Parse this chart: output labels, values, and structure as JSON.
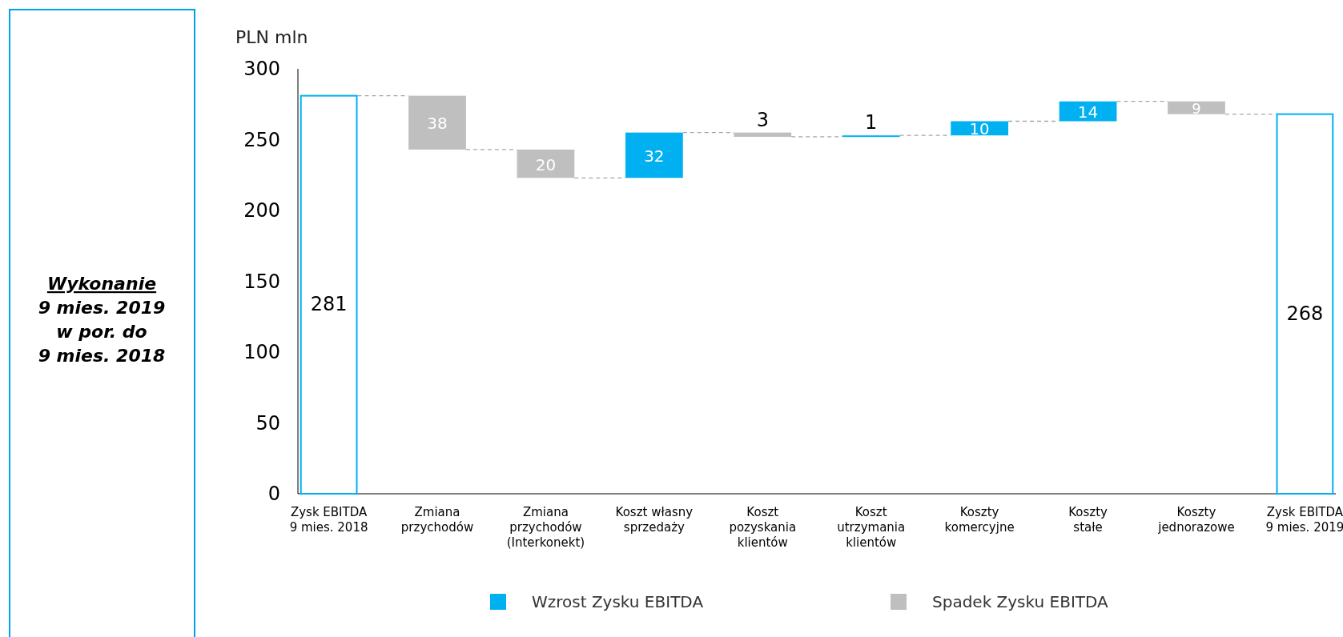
{
  "chart_data": {
    "type": "bar",
    "ylabel": "PLN mln",
    "categories": [
      "Zysk EBITDA\n9 mies. 2018",
      "Zmiana\nprzychodów",
      "Zmiana\nprzychodów\n(Interkonekt)",
      "Koszt własny\nsprzedaży",
      "Koszt\npozyskania\nklientów",
      "Koszt\nutrzymania\nklientów",
      "Koszty\nkomercyjne",
      "Koszty\nstałe",
      "Koszty\njednorazowe",
      "Zysk EBITDA\n9 mies. 2019"
    ],
    "stacked": true,
    "series": [
      {
        "color": "#00b0f0",
        "values": [
          281,
          null,
          null,
          null,
          null,
          null,
          null,
          null,
          null,
          268
        ],
        "base": [
          0,
          null,
          null,
          null,
          null,
          null,
          null,
          null,
          null,
          0
        ]
      },
      {
        "name": "Wzrost Zysku EBITDA",
        "color": "#00b0f0",
        "values": [
          null,
          null,
          null,
          32,
          null,
          1,
          10,
          14,
          null,
          null
        ],
        "base": [
          null,
          null,
          null,
          223,
          null,
          252,
          253,
          263,
          null,
          null
        ]
      },
      {
        "name": "Spadek Zysku EBITDA",
        "color": "#bfbfbf",
        "values": [
          null,
          38,
          20,
          null,
          3,
          null,
          null,
          null,
          9,
          null
        ],
        "base": [
          null,
          243,
          223,
          null,
          252,
          null,
          null,
          null,
          268,
          null
        ]
      }
    ],
    "ylim": [
      0,
      300
    ],
    "yticks": [
      0,
      50,
      100,
      150,
      200,
      250,
      300
    ],
    "data_labels": true,
    "legend": "bottom",
    "grid": false,
    "annotations": [
      "Wykonanie",
      "9 mies. 2019",
      "w por. do",
      "9 mies. 2018"
    ]
  }
}
